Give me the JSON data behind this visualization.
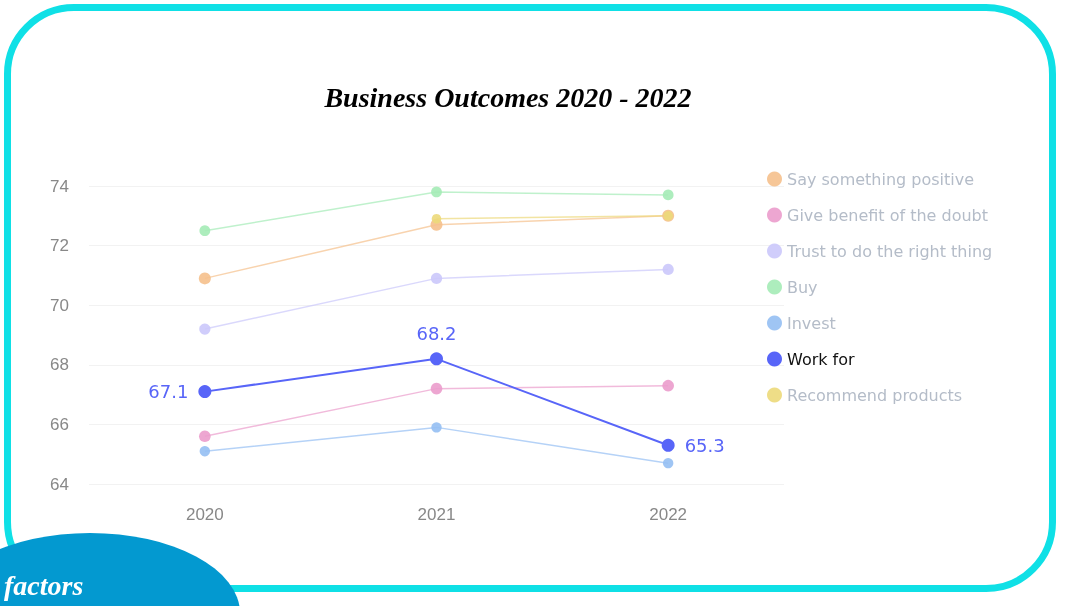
{
  "chart_data": {
    "type": "line",
    "title": "Business Outcomes 2020 - 2022",
    "categories": [
      "2020",
      "2021",
      "2022"
    ],
    "series": [
      {
        "name": "Say something positive",
        "color": "#f5c08c",
        "values": [
          70.9,
          72.7,
          73.0
        ]
      },
      {
        "name": "Give benefit of the doubt",
        "color": "#eb9ccc",
        "values": [
          65.6,
          67.2,
          67.3
        ]
      },
      {
        "name": "Trust to do the right thing",
        "color": "#cbc8fb",
        "values": [
          69.2,
          70.9,
          71.2
        ]
      },
      {
        "name": "Buy",
        "color": "#a4ebb6",
        "values": [
          72.5,
          73.8,
          73.7
        ]
      },
      {
        "name": "Invest",
        "color": "#95bff3",
        "values": [
          65.1,
          65.9,
          64.7
        ]
      },
      {
        "name": "Work for",
        "color": "#5865f8",
        "values": [
          67.1,
          68.2,
          65.3
        ],
        "value_labels": [
          "67.1",
          "68.2",
          "65.3"
        ]
      },
      {
        "name": "Recommend products",
        "color": "#ecd97a",
        "values": [
          null,
          72.9,
          73.0
        ]
      }
    ],
    "ylim": [
      64,
      74
    ],
    "yticks": [
      64,
      66,
      68,
      70,
      72,
      74
    ],
    "grid": "y",
    "legend": "right",
    "marker": "circle",
    "line_style": "solid",
    "annotations": [
      "factors"
    ]
  }
}
